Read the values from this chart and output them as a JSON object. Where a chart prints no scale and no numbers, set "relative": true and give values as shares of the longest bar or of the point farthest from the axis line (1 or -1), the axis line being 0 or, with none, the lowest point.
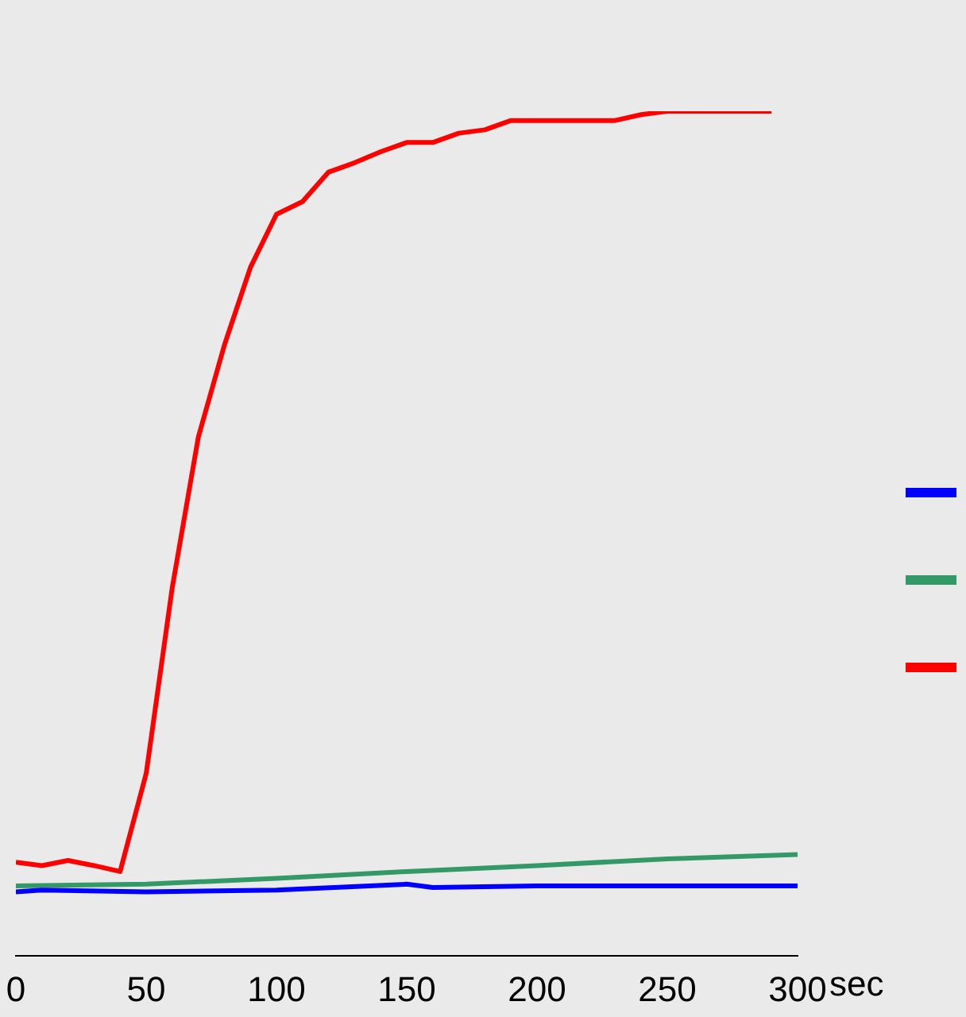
{
  "chart_data": {
    "type": "line",
    "relative": true,
    "xlabel": "sec",
    "xlim": [
      0,
      300
    ],
    "xticks": [
      0,
      50,
      100,
      150,
      200,
      250,
      300
    ],
    "grid": false,
    "marker": "none",
    "line_style": "solid",
    "series": [
      {
        "color": "#0000ff",
        "x": [
          0,
          10,
          50,
          100,
          150,
          160,
          200,
          300
        ],
        "values": [
          0.076,
          0.078,
          0.076,
          0.078,
          0.085,
          0.081,
          0.083,
          0.083
        ]
      },
      {
        "color": "#339966",
        "x": [
          0,
          50,
          100,
          150,
          200,
          250,
          300
        ],
        "values": [
          0.083,
          0.085,
          0.092,
          0.1,
          0.107,
          0.115,
          0.12
        ]
      },
      {
        "color": "#ff0000",
        "x": [
          0,
          10,
          20,
          30,
          40,
          50,
          60,
          70,
          80,
          90,
          100,
          110,
          120,
          130,
          140,
          150,
          160,
          170,
          180,
          190,
          200,
          210,
          220,
          230,
          240,
          250,
          260,
          270,
          280,
          290
        ],
        "values": [
          0.111,
          0.107,
          0.113,
          0.107,
          0.1,
          0.216,
          0.436,
          0.614,
          0.723,
          0.815,
          0.878,
          0.893,
          0.928,
          0.939,
          0.952,
          0.963,
          0.963,
          0.974,
          0.978,
          0.989,
          0.989,
          0.989,
          0.989,
          0.989,
          0.996,
          1,
          1,
          1,
          1,
          1
        ]
      }
    ]
  }
}
